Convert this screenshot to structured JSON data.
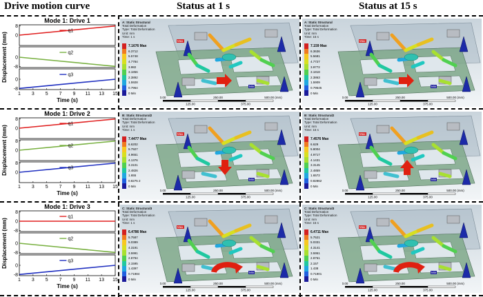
{
  "headers": {
    "col1": "Drive motion curve",
    "col2": "Status at 1 s",
    "col3": "Status at 15 s"
  },
  "plots": [
    {
      "title": "Mode 1: Drive 1",
      "ylabel": "Displacement (mm)",
      "xlabel": "Time (s)",
      "xticks": [
        "1",
        "3",
        "5",
        "7",
        "9",
        "11",
        "13",
        "15"
      ],
      "series": [
        {
          "name": "q1",
          "color": "#e02020",
          "yticks": [
            "8",
            "0"
          ],
          "from": 0,
          "to": 8
        },
        {
          "name": "q2",
          "color": "#78b040",
          "yticks": [
            "0",
            "-8"
          ],
          "from": 0,
          "to": -8
        },
        {
          "name": "q3",
          "color": "#2030c0",
          "yticks": [
            "0",
            "-8"
          ],
          "from": -8,
          "to": 0
        }
      ]
    },
    {
      "title": "Mode 1: Drive 2",
      "ylabel": "Displacement (mm)",
      "xlabel": "Time (s)",
      "xticks": [
        "1",
        "3",
        "5",
        "7",
        "9",
        "11",
        "13",
        "15"
      ],
      "series": [
        {
          "name": "q1",
          "color": "#e02020",
          "yticks": [
            "8",
            "0"
          ],
          "from": 0,
          "to": 8
        },
        {
          "name": "q2",
          "color": "#78b040",
          "yticks": [
            "8",
            "0"
          ],
          "from": 0,
          "to": 8
        },
        {
          "name": "q3",
          "color": "#2030c0",
          "yticks": [
            "8",
            "0"
          ],
          "from": 0,
          "to": 8
        }
      ]
    },
    {
      "title": "Mode 1: Drive 3",
      "ylabel": "Displacement (mm)",
      "xlabel": "Time (s)",
      "xticks": [
        "1",
        "3",
        "5",
        "7",
        "9",
        "11",
        "13",
        "15"
      ],
      "series": [
        {
          "name": "q1",
          "color": "#e02020",
          "yticks": [
            "8",
            "0",
            "-8"
          ],
          "from": 0,
          "to": 0
        },
        {
          "name": "q2",
          "color": "#78b040",
          "yticks": [
            "0",
            "-8"
          ],
          "from": 0,
          "to": -8
        },
        {
          "name": "q3",
          "color": "#2030c0",
          "yticks": [
            "0",
            "-8"
          ],
          "from": -8,
          "to": 0
        }
      ]
    }
  ],
  "panels": [
    {
      "name": "A: Static Structural",
      "type": "Total Deformation",
      "type2": "Type: Total Deformation",
      "unit": "Unit: mm",
      "time": "Time: 1 s",
      "legend": [
        "7.1676 Max",
        "6.3712",
        "5.5748",
        "4.7784",
        "3.982",
        "3.1856",
        "2.3892",
        "1.5928",
        "0.7964",
        "0 Min"
      ]
    },
    {
      "name": "A: Static Structural",
      "type": "Total Deformation",
      "type2": "Type: Total Deformation",
      "unit": "Unit: mm",
      "time": "Time: 15 s",
      "legend": [
        "7.159 Max",
        "6.3636",
        "5.5681",
        "4.7727",
        "3.9772",
        "3.1818",
        "2.3863",
        "1.5909",
        "0.79545",
        "0 Min"
      ]
    },
    {
      "name": "B: Static Structural2",
      "type": "Total Deformation",
      "type2": "Type: Total Deformation",
      "unit": "Unit: mm",
      "time": "Time: 1 s",
      "legend": [
        "7.4477 Max",
        "6.6202",
        "5.7927",
        "4.9651",
        "4.1376",
        "3.3101",
        "2.4826",
        "1.655",
        "0.8275 2",
        "0 Min"
      ]
    },
    {
      "name": "B: Static Structural2",
      "type": "Total Deformation",
      "type2": "Type: Total Deformation",
      "unit": "Unit: mm",
      "time": "Time: 15 s",
      "legend": [
        "7.4576 Max",
        "6.629",
        "5.8004",
        "4.9717",
        "4.1431",
        "3.3145",
        "2.4859",
        "1.6572",
        "0.82862",
        "0 Min"
      ]
    },
    {
      "name": "C: Static Structural3",
      "type": "Total Deformation",
      "type2": "Type: Total Deformation",
      "unit": "Unit: mm",
      "time": "Time: 1 s",
      "legend": [
        "6.4786 Max",
        "5.7587",
        "5.0389",
        "4.3191",
        "3.5991",
        "2.8794",
        "2.1595",
        "1.4397",
        "0.71984",
        "0 Min"
      ]
    },
    {
      "name": "C: Static Structural3",
      "type": "Total Deformation",
      "type2": "Type: Total Deformation",
      "unit": "Unit: mm",
      "time": "Time: 15 s",
      "legend": [
        "6.4711 Max",
        "5.7521",
        "5.0331",
        "4.3141",
        "3.5951",
        "2.8761",
        "2.157",
        "1.438",
        "0.71901",
        "0 Min"
      ]
    }
  ],
  "scale": {
    "t0": "0.00",
    "t1": "250.00",
    "t2": "500.00 (mm)",
    "m1": "125.00",
    "m2": "375.00"
  },
  "tags": {
    "max": "Max",
    "min": "Min"
  },
  "legend_colors": [
    "#d42020",
    "#f07a20",
    "#f8c820",
    "#d8e020",
    "#a8e030",
    "#50d050",
    "#20c8a0",
    "#20a8e0",
    "#2060e0",
    "#1a1a9a"
  ],
  "arrow_color": "#e02010"
}
